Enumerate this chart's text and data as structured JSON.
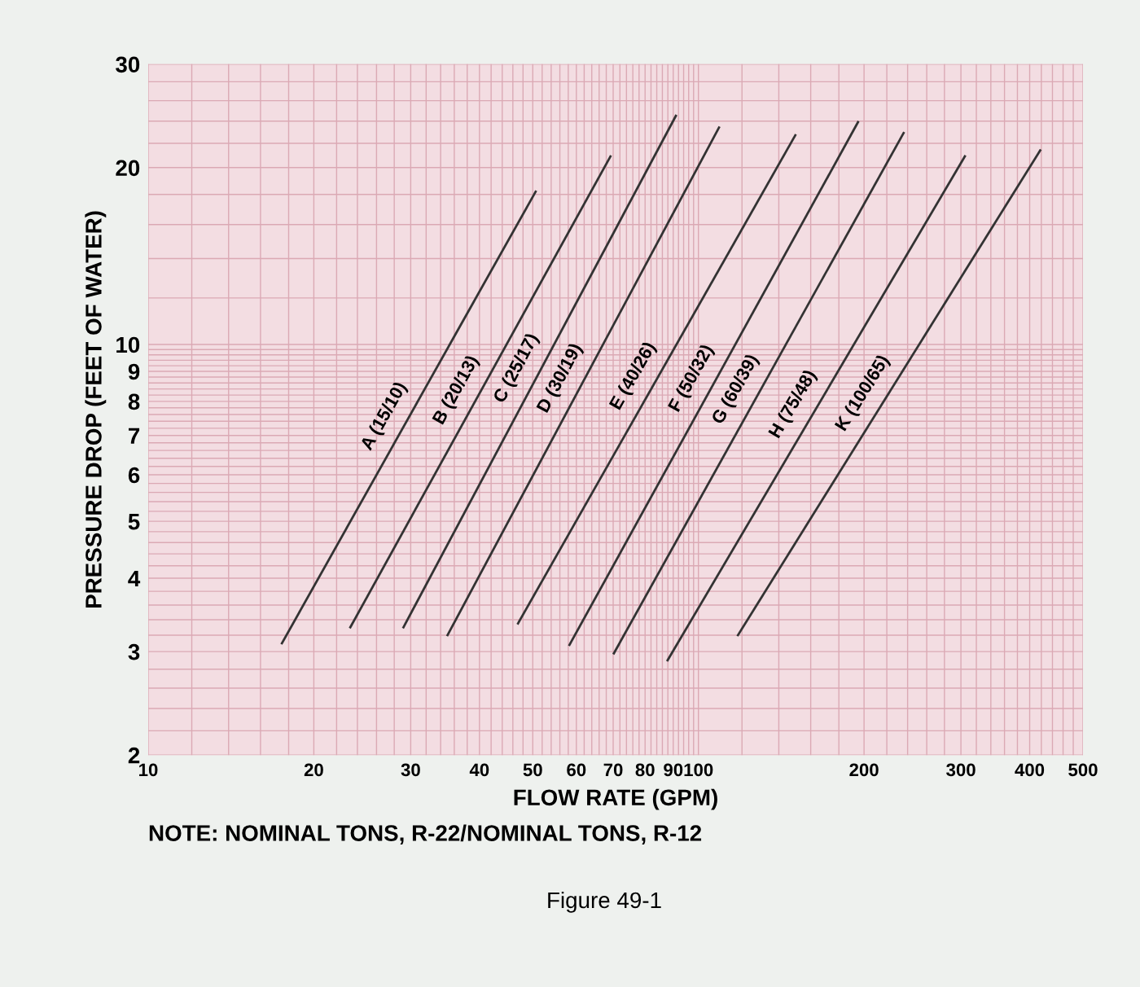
{
  "chart_data": {
    "type": "line",
    "xlabel": "FLOW RATE (GPM)",
    "ylabel": "PRESSURE DROP (FEET OF WATER)",
    "annotations": [
      "NOTE: NOMINAL TONS, R-22/NOMINAL TONS, R-12",
      "Figure 49-1"
    ],
    "log": "xy",
    "grid": true,
    "legend": false,
    "marker": "none",
    "line_style": "solid",
    "xlim": [
      10,
      500
    ],
    "xticks": [
      10,
      20,
      30,
      40,
      50,
      60,
      70,
      80,
      90,
      100,
      200,
      300,
      400,
      500
    ],
    "ylim": [
      2,
      30
    ],
    "yticks": [
      2,
      3,
      4,
      5,
      6,
      7,
      8,
      9,
      10,
      20,
      30
    ],
    "series": [
      {
        "name": "A (15/10)",
        "color": "#333333",
        "x": [
          17.5,
          50.6
        ],
        "values": [
          3.1,
          18.2
        ]
      },
      {
        "name": "B (20/13)",
        "color": "#333333",
        "x": [
          23.3,
          69.2
        ],
        "values": [
          3.3,
          20.9
        ]
      },
      {
        "name": "C (25/17)",
        "color": "#333333",
        "x": [
          29.1,
          91
        ],
        "values": [
          3.3,
          24.5
        ]
      },
      {
        "name": "D (30/19)",
        "color": "#333333",
        "x": [
          35,
          109
        ],
        "values": [
          3.2,
          23.4
        ]
      },
      {
        "name": "E (40/26)",
        "color": "#333333",
        "x": [
          47,
          150
        ],
        "values": [
          3.35,
          22.7
        ]
      },
      {
        "name": "F (50/32)",
        "color": "#333333",
        "x": [
          58.3,
          195
        ],
        "values": [
          3.08,
          23.9
        ]
      },
      {
        "name": "G (60/39)",
        "color": "#333333",
        "x": [
          70.2,
          236
        ],
        "values": [
          2.98,
          22.9
        ]
      },
      {
        "name": "H (75/48)",
        "color": "#333333",
        "x": [
          87.9,
          305
        ],
        "values": [
          2.9,
          20.9
        ]
      },
      {
        "name": "K (100/65)",
        "color": "#333333",
        "x": [
          118,
          418
        ],
        "values": [
          3.2,
          21.4
        ]
      }
    ]
  }
}
